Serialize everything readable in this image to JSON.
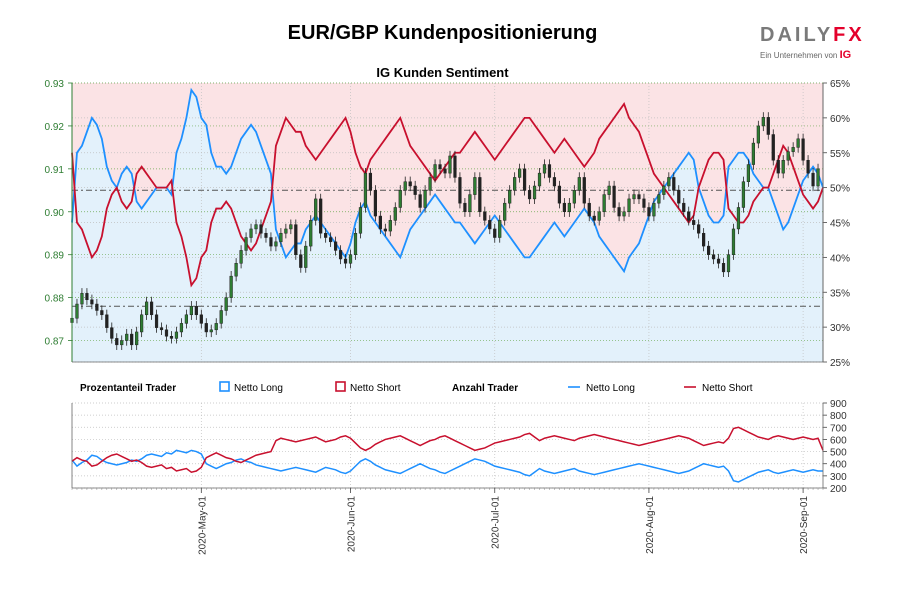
{
  "header": {
    "title": "EUR/GBP Kundenpositionierung",
    "subtitle": "IG Kunden Sentiment",
    "logo_text_main": "DAILY",
    "logo_text_fx": "FX",
    "logo_sub": "Ein Unternehmen von",
    "logo_ig": "IG"
  },
  "colors": {
    "long": "#1e90ff",
    "short": "#c8102e",
    "long_fill": "#e3f1fb",
    "short_fill": "#fbe3e5",
    "candle": "#2e7d32",
    "left_axis": "#2e7d32"
  },
  "legend": {
    "group1": "Prozentanteil Trader",
    "long1": "Netto Long",
    "short1": "Netto Short",
    "group2": "Anzahl Trader",
    "long2": "Netto Long",
    "short2": "Netto Short"
  },
  "chart_data": {
    "type": "line",
    "title": "EUR/GBP Kundenpositionierung",
    "subtitle": "IG Kunden Sentiment",
    "price_axis": {
      "ylim": [
        0.865,
        0.93
      ],
      "ticks": [
        "0.87",
        "0.88",
        "0.89",
        "0.90",
        "0.91",
        "0.92",
        "0.93"
      ]
    },
    "percent_axis": {
      "ylim": [
        25,
        65
      ],
      "ticks": [
        "25%",
        "30%",
        "35%",
        "40%",
        "45%",
        "50%",
        "55%",
        "60%",
        "65%"
      ]
    },
    "count_axis": {
      "ylim": [
        200,
        900
      ],
      "ticks": [
        "200",
        "300",
        "400",
        "500",
        "600",
        "700",
        "800",
        "900"
      ]
    },
    "x_tick_labels": [
      "2020-May-01",
      "2020-Jun-01",
      "2020-Jul-01",
      "2020-Aug-01",
      "2020-Sep-01"
    ],
    "x_tick_index": [
      26,
      56,
      85,
      116,
      147
    ],
    "price_close": [
      0.8752,
      0.8785,
      0.881,
      0.8795,
      0.8785,
      0.877,
      0.876,
      0.873,
      0.8705,
      0.869,
      0.87,
      0.8715,
      0.869,
      0.872,
      0.876,
      0.879,
      0.876,
      0.873,
      0.8725,
      0.871,
      0.8705,
      0.872,
      0.874,
      0.876,
      0.878,
      0.876,
      0.874,
      0.872,
      0.8725,
      0.874,
      0.877,
      0.88,
      0.885,
      0.888,
      0.891,
      0.894,
      0.896,
      0.897,
      0.895,
      0.894,
      0.892,
      0.893,
      0.895,
      0.896,
      0.897,
      0.89,
      0.887,
      0.892,
      0.898,
      0.903,
      0.895,
      0.894,
      0.893,
      0.891,
      0.889,
      0.888,
      0.89,
      0.895,
      0.901,
      0.909,
      0.905,
      0.899,
      0.896,
      0.8955,
      0.898,
      0.901,
      0.905,
      0.907,
      0.906,
      0.904,
      0.901,
      0.905,
      0.908,
      0.911,
      0.91,
      0.909,
      0.913,
      0.908,
      0.902,
      0.9,
      0.904,
      0.908,
      0.9,
      0.898,
      0.896,
      0.894,
      0.898,
      0.902,
      0.905,
      0.908,
      0.91,
      0.905,
      0.903,
      0.906,
      0.909,
      0.911,
      0.908,
      0.906,
      0.902,
      0.9,
      0.902,
      0.905,
      0.908,
      0.902,
      0.899,
      0.898,
      0.9,
      0.904,
      0.906,
      0.901,
      0.899,
      0.9,
      0.903,
      0.904,
      0.903,
      0.901,
      0.899,
      0.902,
      0.904,
      0.906,
      0.908,
      0.905,
      0.902,
      0.9,
      0.898,
      0.897,
      0.895,
      0.892,
      0.89,
      0.889,
      0.888,
      0.886,
      0.89,
      0.896,
      0.901,
      0.907,
      0.911,
      0.916,
      0.92,
      0.922,
      0.918,
      0.912,
      0.909,
      0.912,
      0.914,
      0.915,
      0.917,
      0.912,
      0.909,
      0.906,
      0.91
    ],
    "series": [
      {
        "name": "Netto Long",
        "percent": [
          45,
          55,
          56,
          58,
          60,
          59,
          57,
          53,
          51,
          50,
          52,
          53,
          52,
          48,
          47,
          48,
          49,
          50,
          50,
          50,
          49,
          55,
          57,
          60,
          64,
          63,
          60,
          59,
          55,
          53,
          53,
          52,
          53,
          55,
          57,
          58,
          59,
          58,
          56,
          54,
          52,
          44,
          42,
          40,
          41,
          42,
          42,
          44,
          45,
          46,
          45,
          44,
          43,
          42,
          41,
          40,
          42,
          45,
          47,
          48,
          46,
          45,
          44,
          43,
          42,
          41,
          40,
          42,
          44,
          45,
          46,
          47,
          48,
          49,
          48,
          47,
          46,
          45,
          45,
          44,
          43,
          42,
          43,
          44,
          45,
          46,
          45,
          44,
          43,
          42,
          41,
          40,
          40,
          41,
          42,
          43,
          44,
          45,
          44,
          43,
          44,
          45,
          46,
          47,
          46,
          45,
          43,
          42,
          41,
          40,
          39,
          38,
          40,
          41,
          42,
          44,
          46,
          48,
          49,
          50,
          51,
          52,
          53,
          54,
          55,
          54,
          50,
          48,
          46,
          45,
          45,
          46,
          53,
          54,
          55,
          55,
          54,
          52,
          51,
          50,
          50,
          48,
          46,
          44,
          45,
          47,
          49,
          51,
          52,
          53,
          52,
          50
        ],
        "count": [
          430,
          380,
          410,
          430,
          470,
          460,
          430,
          410,
          400,
          390,
          400,
          410,
          430,
          420,
          440,
          470,
          480,
          470,
          460,
          490,
          480,
          510,
          500,
          490,
          510,
          500,
          480,
          400,
          380,
          360,
          380,
          400,
          410,
          430,
          440,
          420,
          410,
          390,
          380,
          370,
          360,
          350,
          340,
          350,
          360,
          370,
          360,
          350,
          340,
          330,
          350,
          370,
          360,
          350,
          330,
          320,
          340,
          380,
          420,
          440,
          420,
          390,
          370,
          350,
          340,
          330,
          320,
          340,
          360,
          380,
          400,
          380,
          360,
          350,
          330,
          320,
          340,
          360,
          380,
          400,
          420,
          440,
          430,
          420,
          400,
          380,
          370,
          360,
          350,
          340,
          330,
          310,
          300,
          330,
          360,
          340,
          330,
          320,
          330,
          340,
          350,
          360,
          340,
          330,
          320,
          310,
          320,
          330,
          340,
          350,
          360,
          370,
          380,
          390,
          400,
          390,
          380,
          370,
          360,
          350,
          340,
          330,
          320,
          330,
          340,
          360,
          380,
          400,
          390,
          380,
          370,
          380,
          340,
          260,
          250,
          270,
          290,
          310,
          330,
          340,
          350,
          330,
          320,
          330,
          340,
          350,
          340,
          330,
          340,
          350,
          340,
          340
        ]
      },
      {
        "name": "Netto Short",
        "percent": [
          55,
          45,
          44,
          42,
          40,
          41,
          43,
          47,
          49,
          50,
          48,
          47,
          48,
          52,
          53,
          52,
          51,
          50,
          50,
          50,
          51,
          45,
          43,
          40,
          36,
          37,
          40,
          41,
          45,
          47,
          47,
          48,
          47,
          45,
          43,
          42,
          41,
          42,
          44,
          46,
          48,
          56,
          58,
          60,
          59,
          58,
          58,
          56,
          55,
          54,
          55,
          56,
          57,
          58,
          59,
          60,
          58,
          55,
          53,
          52,
          54,
          55,
          56,
          57,
          58,
          59,
          60,
          58,
          56,
          55,
          54,
          53,
          52,
          51,
          52,
          53,
          54,
          55,
          55,
          56,
          57,
          58,
          57,
          56,
          55,
          54,
          55,
          56,
          57,
          58,
          59,
          60,
          60,
          59,
          58,
          57,
          56,
          55,
          56,
          57,
          56,
          55,
          54,
          53,
          54,
          55,
          57,
          58,
          59,
          60,
          61,
          62,
          60,
          59,
          58,
          56,
          54,
          52,
          51,
          50,
          49,
          48,
          47,
          46,
          45,
          46,
          50,
          52,
          54,
          55,
          55,
          54,
          47,
          46,
          45,
          45,
          46,
          48,
          49,
          50,
          50,
          52,
          54,
          56,
          55,
          53,
          51,
          49,
          48,
          47,
          48,
          50
        ],
        "count": [
          420,
          450,
          430,
          420,
          380,
          390,
          420,
          450,
          470,
          480,
          460,
          440,
          420,
          430,
          410,
          380,
          370,
          380,
          390,
          360,
          370,
          340,
          350,
          360,
          330,
          340,
          370,
          450,
          470,
          490,
          470,
          450,
          440,
          420,
          410,
          430,
          450,
          470,
          480,
          490,
          500,
          590,
          610,
          600,
          590,
          580,
          590,
          600,
          610,
          620,
          600,
          580,
          590,
          600,
          620,
          630,
          610,
          570,
          530,
          510,
          530,
          560,
          580,
          600,
          610,
          620,
          630,
          610,
          590,
          570,
          550,
          570,
          590,
          600,
          620,
          630,
          610,
          590,
          570,
          550,
          530,
          510,
          520,
          530,
          550,
          570,
          580,
          590,
          600,
          610,
          620,
          640,
          650,
          620,
          590,
          610,
          620,
          630,
          620,
          610,
          600,
          590,
          610,
          620,
          630,
          640,
          630,
          620,
          610,
          600,
          590,
          580,
          570,
          560,
          550,
          560,
          570,
          580,
          590,
          600,
          610,
          620,
          630,
          620,
          610,
          590,
          570,
          550,
          560,
          570,
          580,
          570,
          610,
          690,
          700,
          680,
          660,
          640,
          620,
          610,
          600,
          620,
          630,
          620,
          610,
          600,
          610,
          620,
          610,
          600,
          610,
          510
        ]
      }
    ],
    "reference_lines": {
      "price_dashdot": [
        0.905,
        0.878
      ]
    }
  }
}
